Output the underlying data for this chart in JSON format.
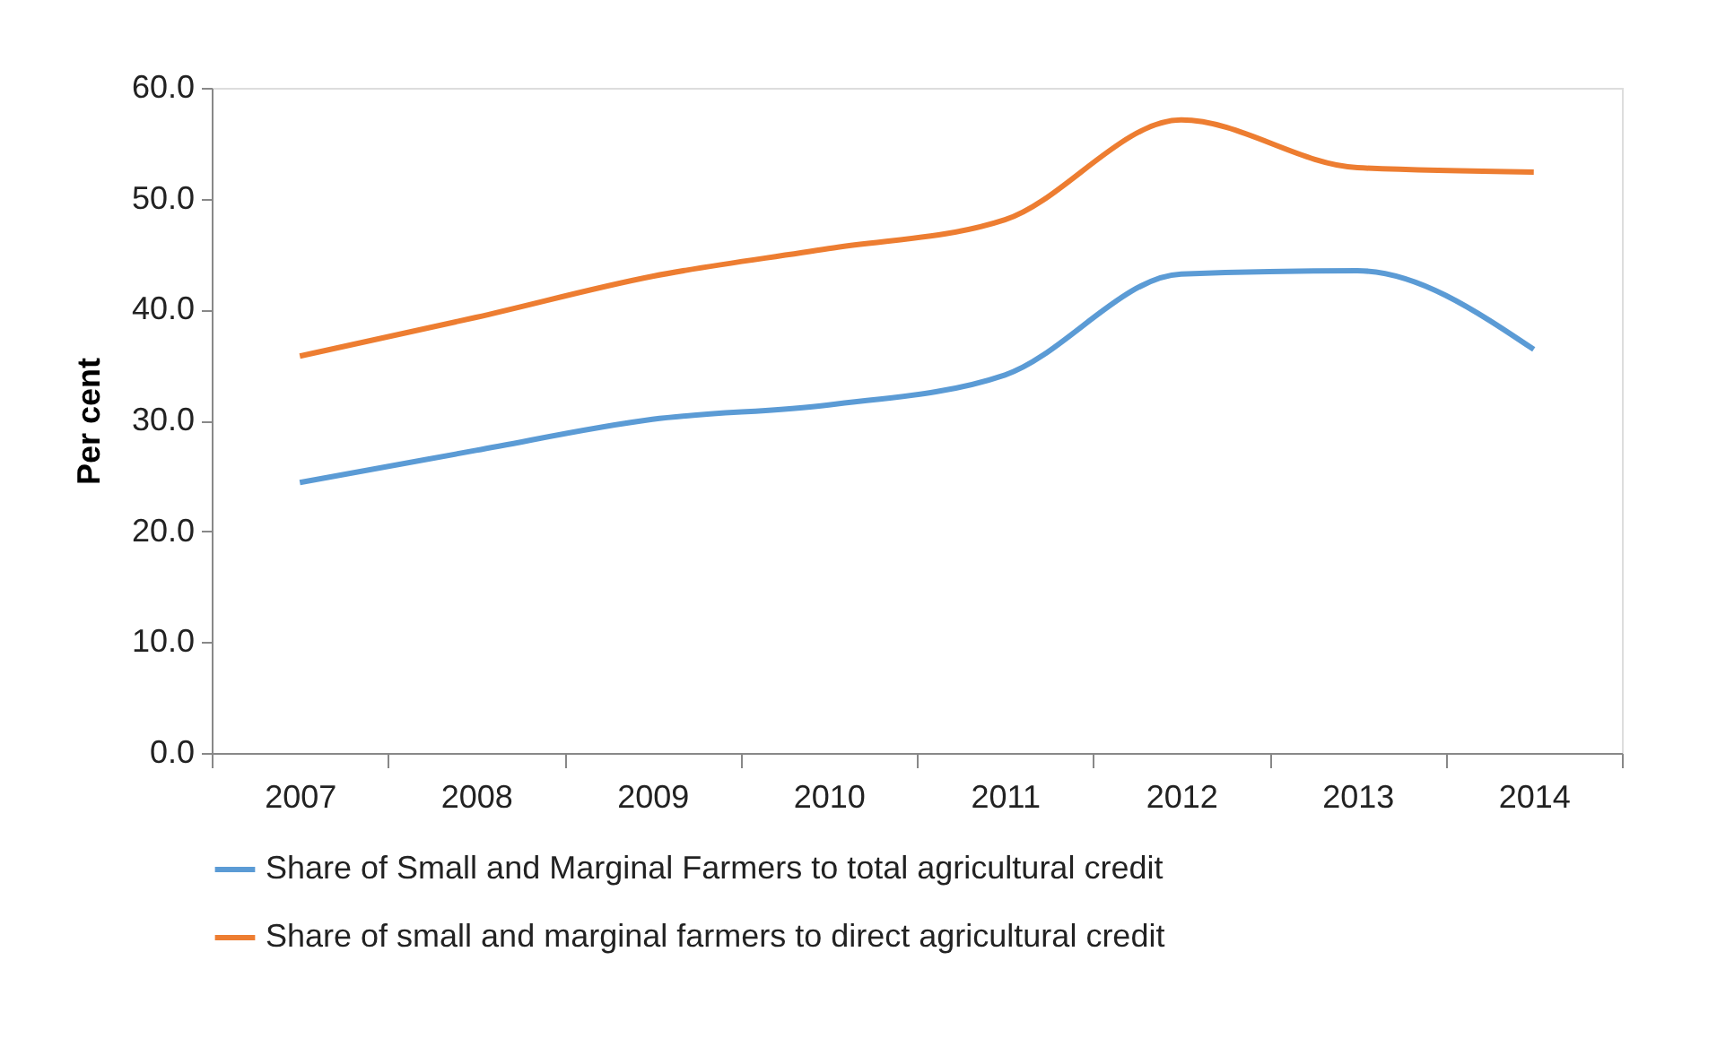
{
  "chart_data": {
    "type": "line",
    "ylabel": "Per cent",
    "categories": [
      "2007",
      "2008",
      "2009",
      "2010",
      "2011",
      "2012",
      "2013",
      "2014"
    ],
    "series": [
      {
        "name": "Share of Small and Marginal Farmers to total agricultural credit",
        "color": "#5b9bd5",
        "values": [
          24.4,
          27.3,
          30.1,
          31.4,
          34.1,
          43.2,
          43.5,
          36.4
        ]
      },
      {
        "name": "Share of small and marginal farmers to direct agricultural credit",
        "color": "#ed7d31",
        "values": [
          35.8,
          39.3,
          43.0,
          45.5,
          48.1,
          57.1,
          52.8,
          52.4
        ]
      }
    ],
    "ylim": [
      0,
      60
    ],
    "yticks": [
      {
        "value": 0,
        "label": "0.0"
      },
      {
        "value": 10,
        "label": "10.0"
      },
      {
        "value": 20,
        "label": "20.0"
      },
      {
        "value": 30,
        "label": "30.0"
      },
      {
        "value": 40,
        "label": "40.0"
      },
      {
        "value": 50,
        "label": "50.0"
      },
      {
        "value": 60,
        "label": "60.0"
      }
    ],
    "grid": false,
    "legend": "bottom",
    "marker": "none",
    "line_style": "solid"
  }
}
